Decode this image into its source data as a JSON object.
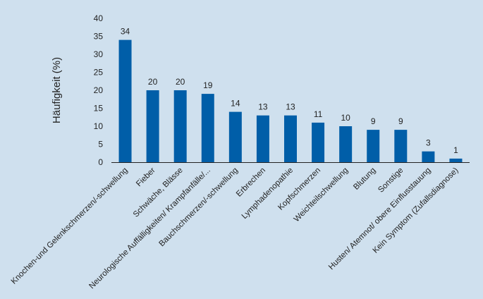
{
  "chart_data": {
    "type": "bar",
    "title": "",
    "xlabel": "",
    "ylabel": "Häufigkeit (%)",
    "ylim": [
      0,
      40
    ],
    "yticks": [
      0,
      5,
      10,
      15,
      20,
      25,
      30,
      35,
      40
    ],
    "grid": false,
    "bar_color": "#005ea8",
    "categories": [
      "Knochen-und Gelenkschmerzen/-schwellung",
      "Fieber",
      "Schwäche, Blässe",
      "Neurologische Auffälligkeiten/ Krampfanfälle/...",
      "Bauchschmerzen/-schwellung",
      "Erbrechen",
      "Lymphadenopathie",
      "Kopfschmerzen",
      "Weichteilschwellung",
      "Blutung",
      "Sonstige",
      "Husten/ Atemnot/ obere Einflusstauung",
      "Kein Symptom (Zufallsdiagnose)"
    ],
    "values": [
      34,
      20,
      20,
      19,
      14,
      13,
      13,
      11,
      10,
      9,
      9,
      3,
      1
    ]
  }
}
